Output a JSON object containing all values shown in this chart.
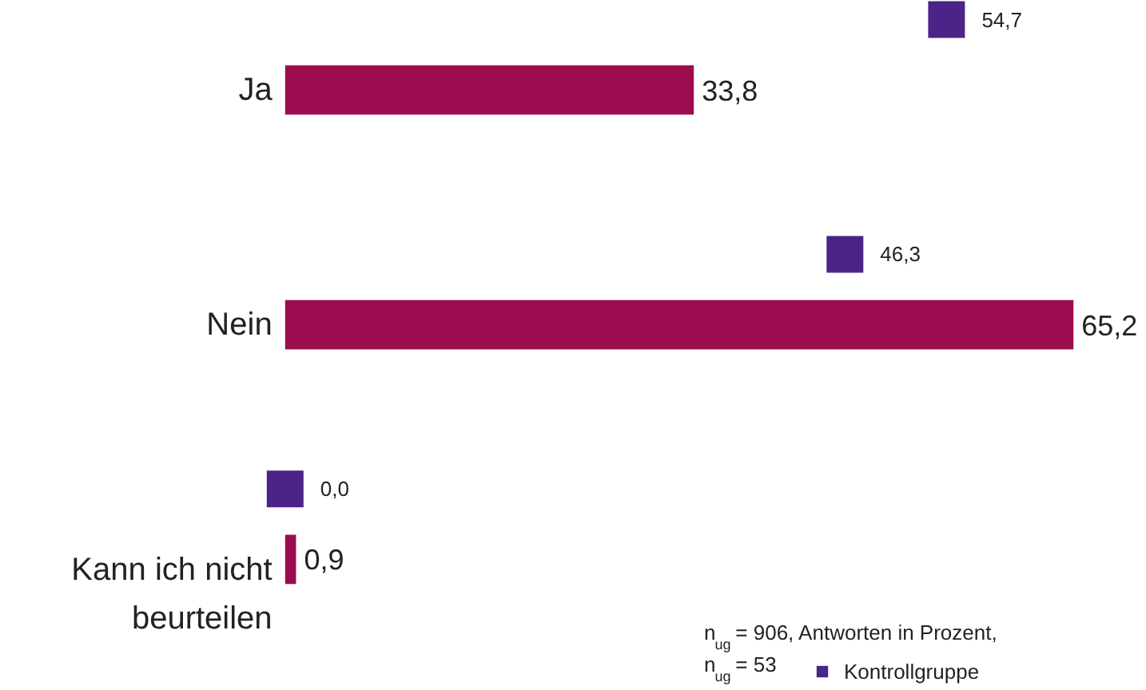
{
  "chart_data": {
    "type": "bar",
    "orientation": "horizontal",
    "categories": [
      "Ja",
      "Nein",
      "Kann ich nicht beurteilen"
    ],
    "series": [
      {
        "color": "#9b0d4e",
        "values": [
          33.8,
          65.2,
          0.9
        ],
        "value_labels": [
          "33,8",
          "65,2",
          "0,9"
        ]
      },
      {
        "name": "Kontrollgruppe",
        "type": "scatter",
        "marker": "square",
        "color": "#4b2487",
        "values": [
          54.7,
          46.3,
          0.0
        ],
        "value_labels": [
          "54,7",
          "46,3",
          "0,0"
        ]
      }
    ],
    "legend": "bottom right",
    "grid": false,
    "annotations": [
      "n$_{ug}$ = 906, Antworten in Prozent,",
      "n$_{ug}$ = 53"
    ]
  }
}
